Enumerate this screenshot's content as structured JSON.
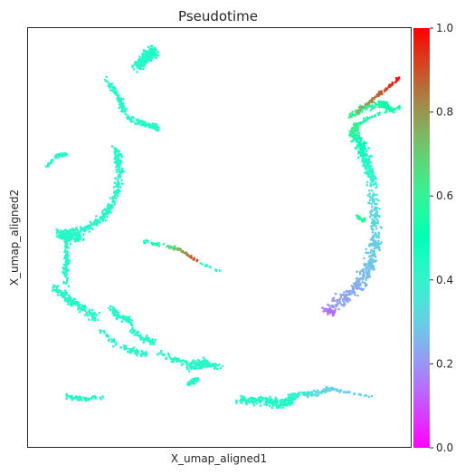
{
  "chart_data": {
    "type": "scatter",
    "title": "Pseudotime",
    "xlabel": "X_umap_aligned1",
    "ylabel": "X_umap_aligned2",
    "x_ticks_shown": false,
    "y_ticks_shown": false,
    "grid": false,
    "colorbar": {
      "label": "",
      "colormap": "rainbow",
      "range": [
        0.0,
        1.0
      ],
      "ticks": [
        0.0,
        0.2,
        0.4,
        0.6,
        0.8,
        1.0
      ],
      "tick_labels": [
        "0.0",
        "0.2",
        "0.4",
        "0.6",
        "0.8",
        "1.0"
      ],
      "placement": "right"
    },
    "clusters": [
      {
        "path": [
          [
            0.25,
            0.1
          ],
          [
            0.25,
            0.09
          ]
        ],
        "spread": 0.014,
        "value": [
          0.42,
          0.42
        ],
        "count": 0
      },
      {
        "path": [
          [
            0.285,
            0.095
          ],
          [
            0.31,
            0.068
          ],
          [
            0.33,
            0.055
          ]
        ],
        "spread": 0.018,
        "value": [
          0.42,
          0.44
        ],
        "count": 260
      },
      {
        "path": [
          [
            0.2,
            0.12
          ],
          [
            0.24,
            0.17
          ],
          [
            0.25,
            0.2
          ]
        ],
        "spread": 0.01,
        "value": [
          0.42,
          0.42
        ],
        "count": 90
      },
      {
        "path": [
          [
            0.26,
            0.215
          ],
          [
            0.31,
            0.23
          ],
          [
            0.34,
            0.24
          ]
        ],
        "spread": 0.01,
        "value": [
          0.42,
          0.42
        ],
        "count": 90
      },
      {
        "path": [
          [
            0.045,
            0.335
          ],
          [
            0.075,
            0.305
          ],
          [
            0.1,
            0.3
          ]
        ],
        "spread": 0.006,
        "value": [
          0.42,
          0.42
        ],
        "count": 55
      },
      {
        "path": [
          [
            0.23,
            0.29
          ],
          [
            0.24,
            0.34
          ],
          [
            0.23,
            0.4
          ]
        ],
        "spread": 0.014,
        "value": [
          0.42,
          0.42
        ],
        "count": 120
      },
      {
        "path": [
          [
            0.23,
            0.4
          ],
          [
            0.2,
            0.45
          ],
          [
            0.15,
            0.48
          ],
          [
            0.1,
            0.49
          ]
        ],
        "spread": 0.013,
        "value": [
          0.42,
          0.42
        ],
        "count": 170
      },
      {
        "path": [
          [
            0.08,
            0.49
          ],
          [
            0.1,
            0.5
          ],
          [
            0.14,
            0.5
          ]
        ],
        "spread": 0.018,
        "value": [
          0.42,
          0.44
        ],
        "count": 120
      },
      {
        "path": [
          [
            0.1,
            0.5
          ],
          [
            0.1,
            0.56
          ],
          [
            0.1,
            0.61
          ]
        ],
        "spread": 0.011,
        "value": [
          0.42,
          0.42
        ],
        "count": 90
      },
      {
        "path": [
          [
            0.07,
            0.62
          ],
          [
            0.11,
            0.65
          ],
          [
            0.14,
            0.67
          ],
          [
            0.18,
            0.69
          ]
        ],
        "spread": 0.016,
        "value": [
          0.42,
          0.42
        ],
        "count": 160
      },
      {
        "path": [
          [
            0.22,
            0.67
          ],
          [
            0.24,
            0.69
          ],
          [
            0.27,
            0.7
          ]
        ],
        "spread": 0.013,
        "value": [
          0.42,
          0.42
        ],
        "count": 90
      },
      {
        "path": [
          [
            0.27,
            0.72
          ],
          [
            0.3,
            0.74
          ],
          [
            0.33,
            0.75
          ]
        ],
        "spread": 0.011,
        "value": [
          0.42,
          0.42
        ],
        "count": 60
      },
      {
        "path": [
          [
            0.19,
            0.72
          ],
          [
            0.22,
            0.75
          ],
          [
            0.27,
            0.77
          ],
          [
            0.31,
            0.78
          ]
        ],
        "spread": 0.01,
        "value": [
          0.42,
          0.42
        ],
        "count": 70
      },
      {
        "path": [
          [
            0.33,
            0.77
          ],
          [
            0.38,
            0.79
          ],
          [
            0.42,
            0.8
          ],
          [
            0.46,
            0.8
          ]
        ],
        "spread": 0.01,
        "value": [
          0.42,
          0.42
        ],
        "count": 70
      },
      {
        "path": [
          [
            0.42,
            0.81
          ],
          [
            0.46,
            0.8
          ],
          [
            0.5,
            0.81
          ]
        ],
        "spread": 0.016,
        "value": [
          0.42,
          0.42
        ],
        "count": 110
      },
      {
        "path": [
          [
            0.44,
            0.84
          ],
          [
            0.42,
            0.85
          ]
        ],
        "spread": 0.01,
        "value": [
          0.42,
          0.42
        ],
        "count": 40
      },
      {
        "path": [
          [
            0.1,
            0.88
          ],
          [
            0.15,
            0.885
          ],
          [
            0.2,
            0.88
          ]
        ],
        "spread": 0.008,
        "value": [
          0.42,
          0.42
        ],
        "count": 60
      },
      {
        "path": [
          [
            0.55,
            0.89
          ],
          [
            0.62,
            0.89
          ],
          [
            0.66,
            0.9
          ],
          [
            0.7,
            0.88
          ]
        ],
        "spread": 0.016,
        "value": [
          0.42,
          0.44
        ],
        "count": 240
      },
      {
        "path": [
          [
            0.68,
            0.88
          ],
          [
            0.72,
            0.875
          ],
          [
            0.76,
            0.87
          ],
          [
            0.79,
            0.86
          ]
        ],
        "spread": 0.009,
        "value": [
          0.4,
          0.3
        ],
        "count": 90
      },
      {
        "path": [
          [
            0.79,
            0.86
          ],
          [
            0.83,
            0.87
          ],
          [
            0.9,
            0.88
          ]
        ],
        "spread": 0.004,
        "value": [
          0.3,
          0.32
        ],
        "count": 30
      },
      {
        "path": [
          [
            0.3,
            0.51
          ],
          [
            0.36,
            0.52
          ],
          [
            0.4,
            0.53
          ],
          [
            0.45,
            0.56
          ]
        ],
        "spread": 0.006,
        "value": [
          0.44,
          0.95
        ],
        "count": 70
      },
      {
        "path": [
          [
            0.45,
            0.56
          ],
          [
            0.5,
            0.58
          ]
        ],
        "spread": 0.004,
        "value": [
          0.42,
          0.42
        ],
        "count": 12
      },
      {
        "path": [
          [
            0.84,
            0.21
          ],
          [
            0.88,
            0.19
          ],
          [
            0.93,
            0.18
          ],
          [
            0.95,
            0.2
          ]
        ],
        "spread": 0.012,
        "value": [
          0.62,
          0.5
        ],
        "count": 120
      },
      {
        "path": [
          [
            0.85,
            0.25
          ],
          [
            0.88,
            0.3
          ],
          [
            0.9,
            0.38
          ]
        ],
        "spread": 0.02,
        "value": [
          0.55,
          0.36
        ],
        "count": 230
      },
      {
        "path": [
          [
            0.9,
            0.4
          ],
          [
            0.91,
            0.5
          ],
          [
            0.89,
            0.58
          ],
          [
            0.85,
            0.63
          ],
          [
            0.79,
            0.67
          ]
        ],
        "spread": 0.022,
        "value": [
          0.34,
          0.2
        ],
        "count": 380
      },
      {
        "path": [
          [
            0.77,
            0.67
          ],
          [
            0.8,
            0.68
          ]
        ],
        "spread": 0.01,
        "value": [
          0.16,
          0.14
        ],
        "count": 40
      },
      {
        "path": [
          [
            0.85,
            0.24
          ],
          [
            0.88,
            0.22
          ],
          [
            0.93,
            0.2
          ],
          [
            0.97,
            0.19
          ]
        ],
        "spread": 0.006,
        "value": [
          0.55,
          0.55
        ],
        "count": 60
      },
      {
        "path": [
          [
            0.85,
            0.25
          ],
          [
            0.86,
            0.23
          ]
        ],
        "spread": 0.012,
        "value": [
          0.62,
          0.6
        ],
        "count": 60
      },
      {
        "path": [
          [
            0.86,
            0.2
          ],
          [
            0.9,
            0.17
          ],
          [
            0.93,
            0.15
          ],
          [
            0.97,
            0.12
          ]
        ],
        "spread": 0.006,
        "value": [
          0.74,
          0.99
        ],
        "count": 90
      },
      {
        "path": [
          [
            0.86,
            0.45
          ],
          [
            0.88,
            0.46
          ]
        ],
        "spread": 0.007,
        "value": [
          0.58,
          0.58
        ],
        "count": 25
      }
    ]
  }
}
